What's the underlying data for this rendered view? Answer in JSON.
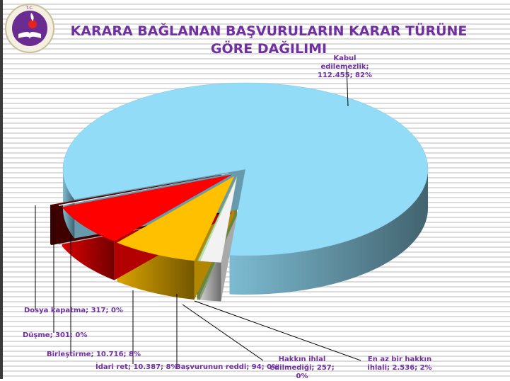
{
  "title": "KARARA BAĞLANAN BAŞVURULARIN KARAR TÜRÜNE GÖRE DAĞILIMI",
  "logo_text": [
    "T.C.",
    "ANAYASA MAHKEMESİ"
  ],
  "chart_data": {
    "type": "pie",
    "style": "3d-exploded",
    "title": "KARARA BAĞLANAN BAŞVURULARIN KARAR TÜRÜNE GÖRE DAĞILIMI",
    "legend": "none (data labels with leader lines)",
    "slices": [
      {
        "name": "En az bir hakkın ihlali",
        "value": 2536,
        "percent": "2%",
        "label": "En az bir hakkın ihlali; 2.536; 2%",
        "color": "#f2f2f2"
      },
      {
        "name": "Hakkın ihlal edilmediği",
        "value": 257,
        "percent": "0%",
        "label": "Hakkın ihlal edilmediği; 257; 0%",
        "color": "#b8e6b0"
      },
      {
        "name": "Başvurunun reddi",
        "value": 94,
        "percent": "0%",
        "label": "Başvurunun reddi; 94; 0%",
        "color": "#9bbb59"
      },
      {
        "name": "İdari ret",
        "value": 10387,
        "percent": "8%",
        "label": "İdari ret; 10.387; 8%",
        "color": "#ffc000"
      },
      {
        "name": "Birleştirme",
        "value": 10716,
        "percent": "8%",
        "label": "Birleştirme; 10.716; 8%",
        "color": "#ff0000"
      },
      {
        "name": "Düşme",
        "value": 301,
        "percent": "0%",
        "label": "Düşme; 301; 0%",
        "color": "#ffffff"
      },
      {
        "name": "Dosya kapatma",
        "value": 317,
        "percent": "0%",
        "label": "Dosya kapatma; 317; 0%",
        "color": "#5c0000"
      },
      {
        "name": "Kabul edilemezlik",
        "value": 112455,
        "percent": "82%",
        "label": "Kabul edilemezlik; 112.455; 82%",
        "color": "#93dcf7"
      }
    ]
  }
}
